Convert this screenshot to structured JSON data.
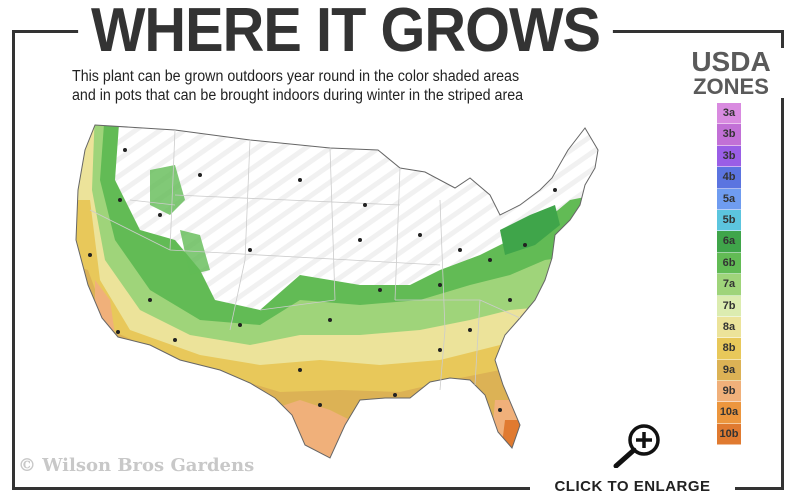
{
  "header": {
    "title": "WHERE IT GROWS",
    "subtitle_line1": "This plant can be grown outdoors year round in the color shaded areas",
    "subtitle_line2": "and in pots that can be brought indoors during winter in the striped area"
  },
  "legend": {
    "title_line1": "USDA",
    "title_line2": "ZONES",
    "zones": [
      {
        "label": "3a",
        "color": "#d98be0"
      },
      {
        "label": "3b",
        "color": "#c270d6"
      },
      {
        "label": "3b",
        "color": "#9a5ee6"
      },
      {
        "label": "4b",
        "color": "#5b74e0"
      },
      {
        "label": "5a",
        "color": "#6f9cf0"
      },
      {
        "label": "5b",
        "color": "#5cc5de"
      },
      {
        "label": "6a",
        "color": "#3fa54a"
      },
      {
        "label": "6b",
        "color": "#62bb55"
      },
      {
        "label": "7a",
        "color": "#9fd47a"
      },
      {
        "label": "7b",
        "color": "#dcecb0"
      },
      {
        "label": "8a",
        "color": "#ece39a"
      },
      {
        "label": "8b",
        "color": "#e8c85a"
      },
      {
        "label": "9a",
        "color": "#dcb255"
      },
      {
        "label": "9b",
        "color": "#f0b07a"
      },
      {
        "label": "10a",
        "color": "#ec963e"
      },
      {
        "label": "10b",
        "color": "#e07a30"
      }
    ]
  },
  "watermark": "© Wilson Bros Gardens",
  "enlarge": {
    "label": "CLICK TO ENLARGE",
    "icon": "zoom-in-magnifier-icon"
  }
}
